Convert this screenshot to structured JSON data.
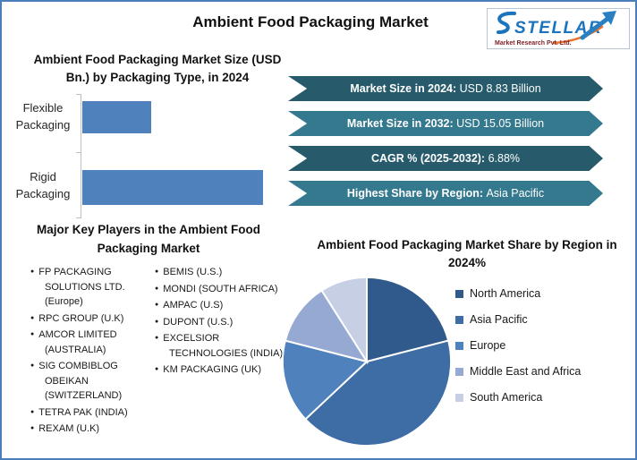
{
  "page": {
    "title": "Ambient Food Packaging Market"
  },
  "logo": {
    "brand": "STELLAR",
    "tagline": "Market Research Pvt. Ltd."
  },
  "colors": {
    "frame_border": "#4a7ebb",
    "arrow_dark": "#275b6c",
    "arrow_light": "#35798e",
    "bar": "#4f81bd",
    "axis": "#bfbfbf",
    "logo_blue": "#1b74bd",
    "logo_orange": "#e8742c",
    "logo_maroon": "#7d1f24"
  },
  "highlights": [
    {
      "label": "Market Size in 2024:",
      "value": "USD 8.83 Billion",
      "tone": "dark"
    },
    {
      "label": "Market Size in 2032:",
      "value": "USD 15.05 Billion",
      "tone": "light"
    },
    {
      "label": "CAGR % (2025-2032):",
      "value": "6.88%",
      "tone": "dark"
    },
    {
      "label": "Highest Share by Region:",
      "value": "Asia Pacific",
      "tone": "light"
    }
  ],
  "key_players": {
    "heading": "Major Key Players in the Ambient Food Packaging Market",
    "column1": [
      "FP PACKAGING SOLUTIONS LTD. (Europe)",
      "RPC GROUP (U.K)",
      "AMCOR LIMITED (AUSTRALIA)",
      "SIG COMBIBLOG OBEIKAN (SWITZERLAND)",
      "TETRA PAK (INDIA)",
      "REXAM (U.K)"
    ],
    "column2": [
      "BEMIS (U.S.)",
      "MONDI (SOUTH AFRICA)",
      "AMPAC (U.S)",
      "DUPONT (U.S.)",
      "EXCELSIOR TECHNOLOGIES (INDIA)",
      "KM PACKAGING (UK)"
    ]
  },
  "chart_data": [
    {
      "type": "bar",
      "title": "Ambient Food Packaging Market Size (USD Bn.) by Packaging Type, in 2024",
      "orientation": "horizontal",
      "categories": [
        "Flexible Packaging",
        "Rigid Packaging"
      ],
      "relative_values": [
        38,
        100
      ],
      "value_axis_labeled": false,
      "note": "Bar lengths estimated as percent of longest bar; no value axis shown",
      "bar_color": "#4f81bd",
      "grid": false,
      "legend": "none"
    },
    {
      "type": "pie",
      "title": "Ambient Food Packaging Market Share by Region in 2024%",
      "start": "top",
      "direction": "clockwise",
      "legend_position": "right",
      "slices": [
        {
          "label": "North America",
          "pct": 21,
          "color": "#305a8c"
        },
        {
          "label": "Asia Pacific",
          "pct": 42,
          "color": "#3e6da6"
        },
        {
          "label": "Europe",
          "pct": 16,
          "color": "#4f81bd"
        },
        {
          "label": "Middle East and Africa",
          "pct": 12,
          "color": "#95a9d2"
        },
        {
          "label": "South America",
          "pct": 9,
          "color": "#c7cfe5"
        }
      ]
    }
  ]
}
